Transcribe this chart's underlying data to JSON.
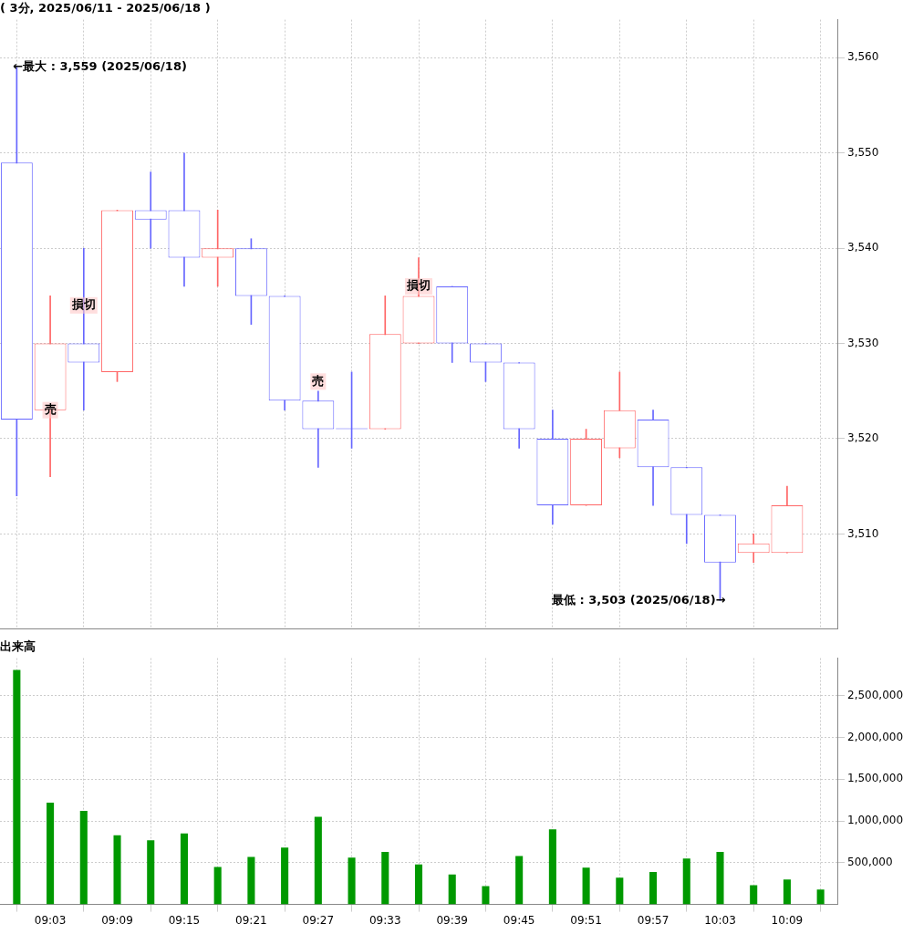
{
  "chart_data": [
    {
      "type": "candlestick",
      "title": "( 3分, 2025/06/11 - 2025/06/18 )",
      "x": [
        9,
        9.05,
        9.1,
        9.15,
        9.2,
        9.25,
        9.3,
        9.35,
        9.4,
        9.45,
        9.5,
        9.55,
        9.6,
        9.65,
        9.7,
        9.75,
        9.8,
        9.85,
        9.9,
        9.95,
        10,
        10.05,
        10.1,
        10.15
      ],
      "ohlc": [
        [
          3549,
          3559,
          3514,
          3522
        ],
        [
          3523,
          3535,
          3516,
          3530
        ],
        [
          3530,
          3540,
          3523,
          3528
        ],
        [
          3527,
          3544,
          3526,
          3544
        ],
        [
          3544,
          3548,
          3540,
          3543
        ],
        [
          3544,
          3550,
          3536,
          3539
        ],
        [
          3539,
          3544,
          3536,
          3540
        ],
        [
          3540,
          3541,
          3532,
          3535
        ],
        [
          3535,
          3535,
          3523,
          3524
        ],
        [
          3524,
          3525,
          3517,
          3521
        ],
        [
          3521,
          3527,
          3519,
          3521
        ],
        [
          3521,
          3535,
          3521,
          3531
        ],
        [
          3530,
          3539,
          3530,
          3535
        ],
        [
          3536,
          3536,
          3528,
          3530
        ],
        [
          3530,
          3530,
          3526,
          3528
        ],
        [
          3528,
          3528,
          3519,
          3521
        ],
        [
          3520,
          3523,
          3511,
          3513
        ],
        [
          3513,
          3521,
          3513,
          3520
        ],
        [
          3519,
          3527,
          3518,
          3523
        ],
        [
          3522,
          3523,
          3513,
          3517
        ],
        [
          3517,
          3517,
          3509,
          3512
        ],
        [
          3512,
          3512,
          3503,
          3507
        ],
        [
          3508,
          3510,
          3507,
          3509
        ],
        [
          3508,
          3515,
          3508,
          3513
        ]
      ],
      "colors": [
        "#6666ff",
        "#ff6666",
        "#6666ff",
        "#ff6666",
        "#6666ff",
        "#6666ff",
        "#ff6666",
        "#6666ff",
        "#6666ff",
        "#6666ff",
        "#6666ff",
        "#ff6666",
        "#ff6666",
        "#6666ff",
        "#6666ff",
        "#6666ff",
        "#6666ff",
        "#ff6666",
        "#ff6666",
        "#6666ff",
        "#6666ff",
        "#6666ff",
        "#ff6666",
        "#ff6666"
      ],
      "xlim": [
        8.975,
        10.225
      ],
      "xticks": [
        {
          "value": 9.05,
          "label": null
        },
        {
          "value": 9.15,
          "label": null
        },
        {
          "value": 9.25,
          "label": null
        },
        {
          "value": 9.35,
          "label": null
        },
        {
          "value": 9.45,
          "label": null
        },
        {
          "value": 9.55,
          "label": null
        },
        {
          "value": 9.65,
          "label": null
        },
        {
          "value": 9.75,
          "label": null
        },
        {
          "value": 9.85,
          "label": null
        },
        {
          "value": 9.95,
          "label": null
        },
        {
          "value": 10.05,
          "label": null
        },
        {
          "value": 10.15,
          "label": null
        }
      ],
      "ylim": [
        3500,
        3564
      ],
      "yticks": [
        {
          "value": 3510,
          "label": "3,510"
        },
        {
          "value": 3520,
          "label": "3,520"
        },
        {
          "value": 3530,
          "label": "3,530"
        },
        {
          "value": 3540,
          "label": "3,540"
        },
        {
          "value": 3550,
          "label": "3,550"
        },
        {
          "value": 3560,
          "label": "3,560"
        }
      ],
      "tick_labels": "y",
      "grid": true,
      "legend": false,
      "annotations": [
        {
          "text": "←最大 : 3,559 (2025/06/18)",
          "x": 9,
          "y": 3559
        },
        {
          "text": "最低 : 3,503 (2025/06/18)→",
          "x": 10.05,
          "y": 3503
        },
        {
          "text": "売",
          "x": 9.05,
          "y": 3523
        },
        {
          "text": "損切",
          "x": 9.1,
          "y": 3534
        },
        {
          "text": "売",
          "x": 9.45,
          "y": 3526
        },
        {
          "text": "損切",
          "x": 9.6,
          "y": 3536
        }
      ]
    },
    {
      "type": "bar",
      "title": "出来高",
      "x": [
        9,
        9.05,
        9.1,
        9.15,
        9.2,
        9.25,
        9.3,
        9.35,
        9.4,
        9.45,
        9.5,
        9.55,
        9.6,
        9.65,
        9.7,
        9.75,
        9.8,
        9.85,
        9.9,
        9.95,
        10,
        10.05,
        10.1,
        10.15,
        10.2
      ],
      "values": [
        2810000,
        1220000,
        1120000,
        830000,
        770000,
        850000,
        450000,
        570000,
        680000,
        1050000,
        560000,
        630000,
        480000,
        360000,
        220000,
        580000,
        900000,
        440000,
        320000,
        390000,
        550000,
        630000,
        230000,
        300000,
        180000
      ],
      "color": "#009900",
      "xlim": [
        8.975,
        10.225
      ],
      "xticks": [
        {
          "value": 9.05,
          "label": "09:03"
        },
        {
          "value": 9.15,
          "label": "09:09"
        },
        {
          "value": 9.25,
          "label": "09:15"
        },
        {
          "value": 9.35,
          "label": "09:21"
        },
        {
          "value": 9.45,
          "label": "09:27"
        },
        {
          "value": 9.55,
          "label": "09:33"
        },
        {
          "value": 9.65,
          "label": "09:39"
        },
        {
          "value": 9.75,
          "label": "09:45"
        },
        {
          "value": 9.85,
          "label": "09:51"
        },
        {
          "value": 9.95,
          "label": "09:57"
        },
        {
          "value": 10.05,
          "label": "10:03"
        },
        {
          "value": 10.15,
          "label": "10:09"
        }
      ],
      "ylim": [
        0,
        2950000
      ],
      "yticks": [
        {
          "value": 500000,
          "label": "500,000"
        },
        {
          "value": 1000000,
          "label": "1,000,000"
        },
        {
          "value": 1500000,
          "label": "1,500,000"
        },
        {
          "value": 2000000,
          "label": "2,000,000"
        },
        {
          "value": 2500000,
          "label": "2,500,000"
        }
      ],
      "grid": true,
      "legend": false
    }
  ]
}
